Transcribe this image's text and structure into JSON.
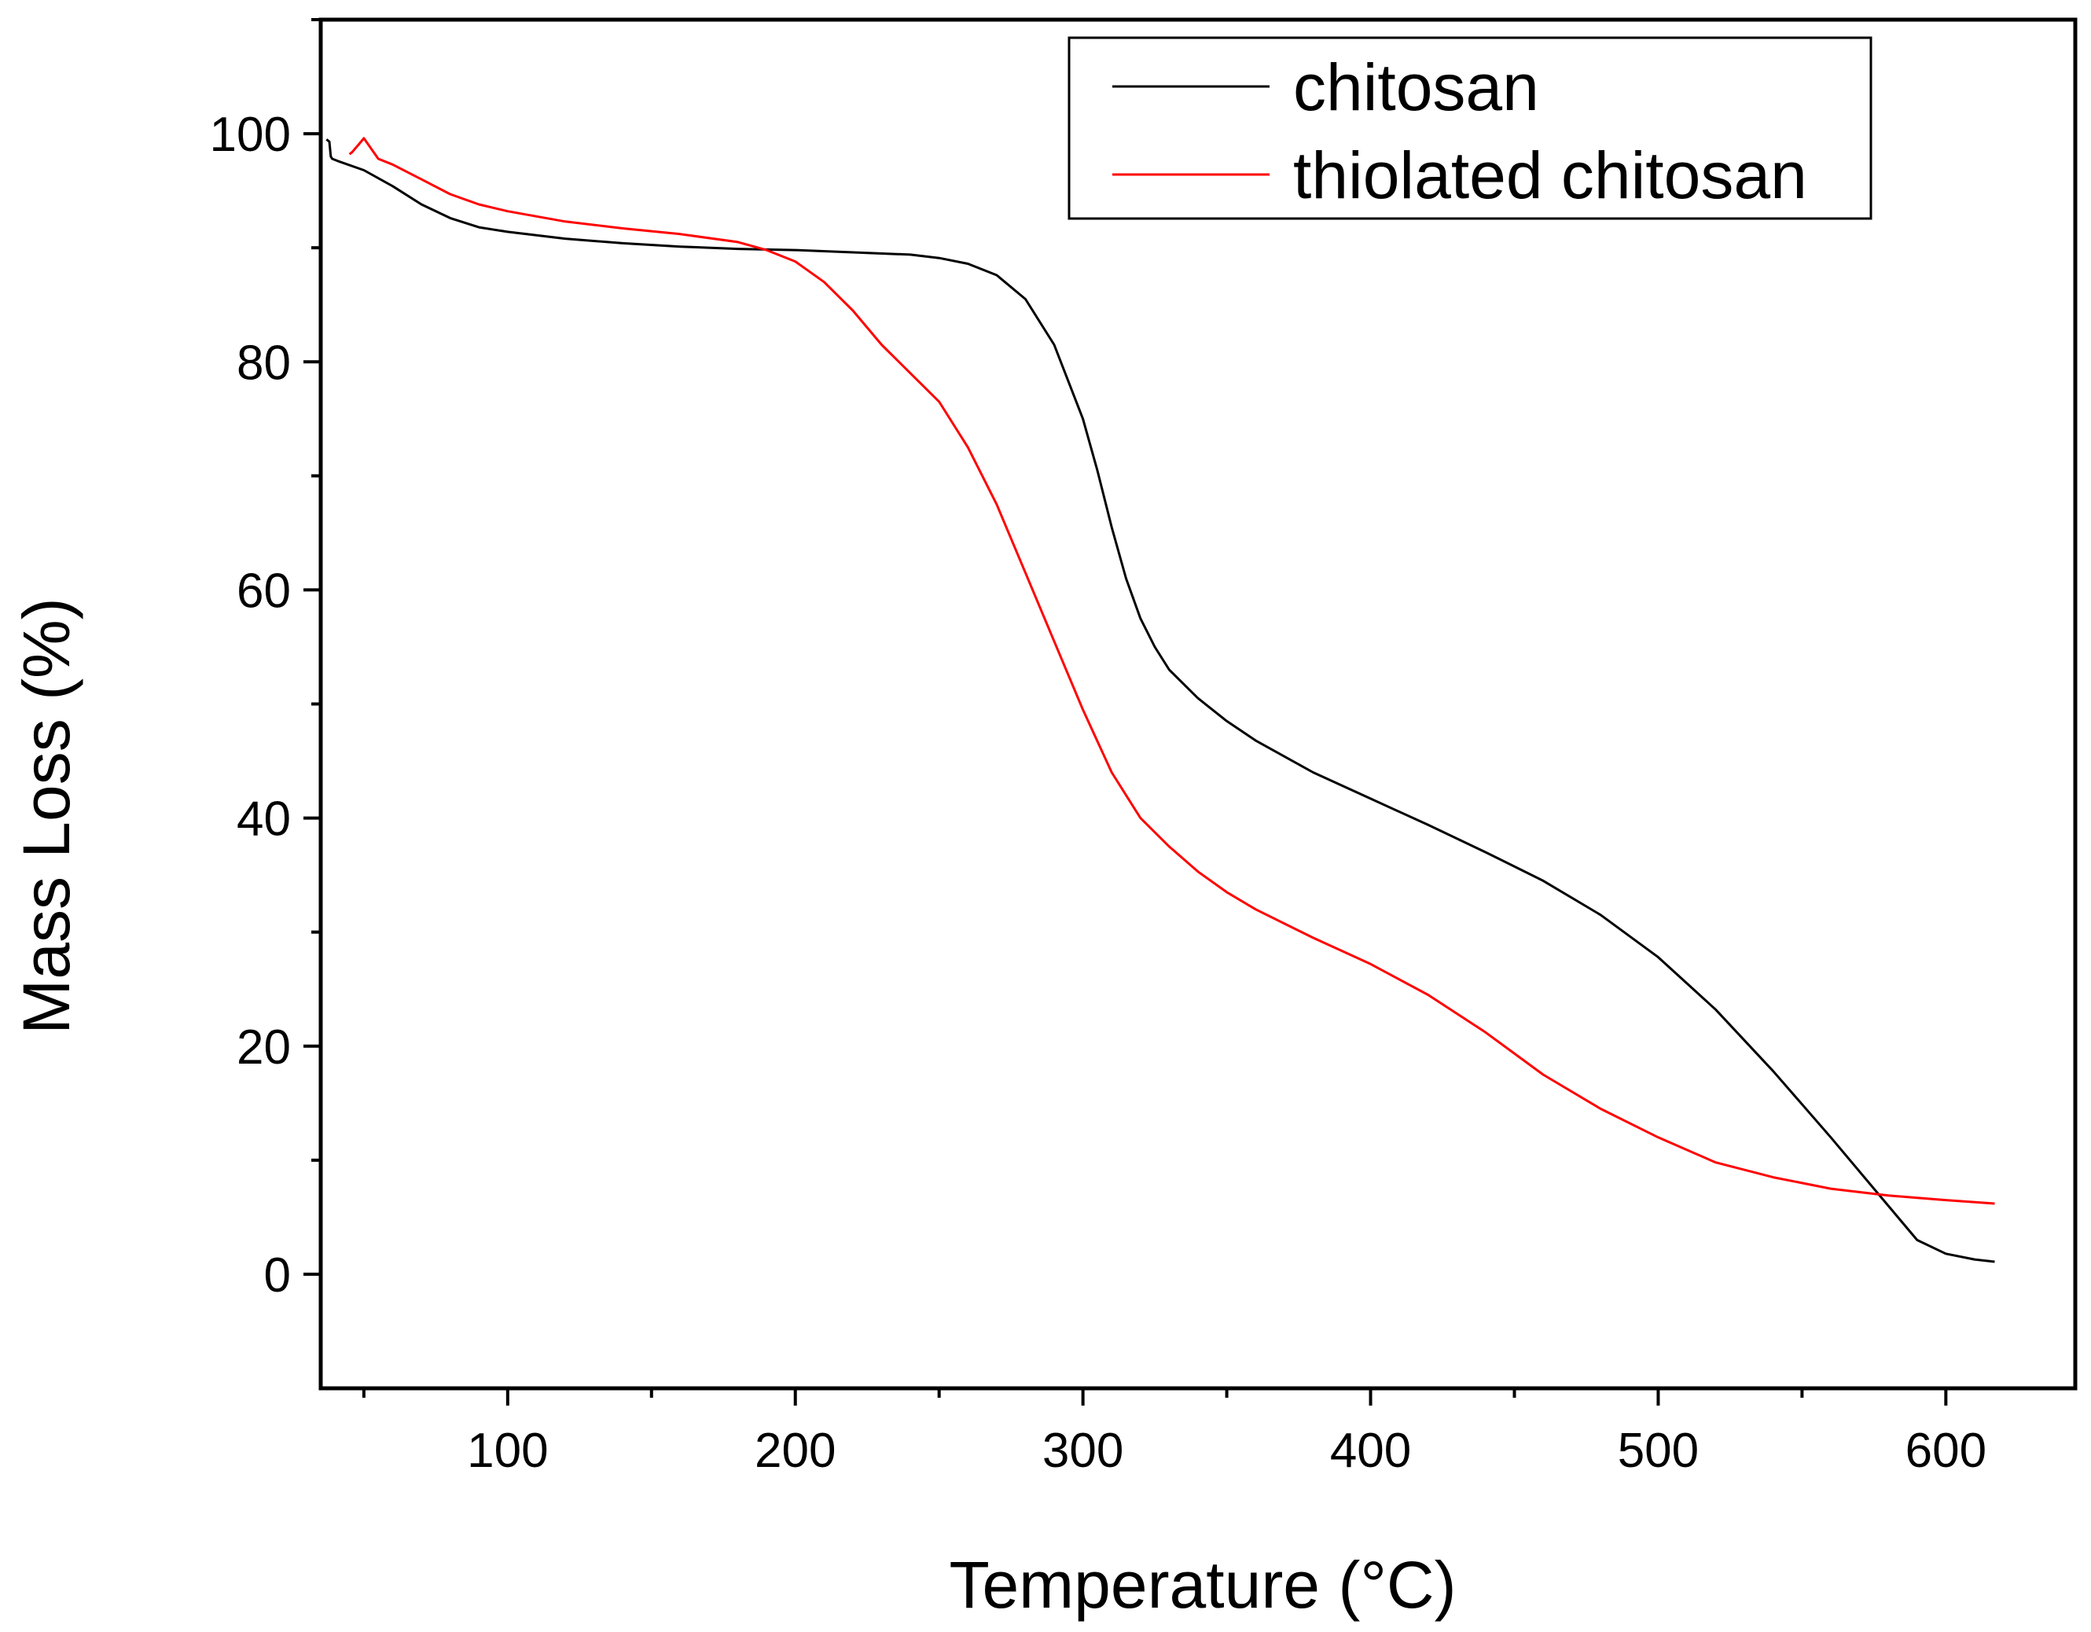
{
  "chart_data": {
    "type": "line",
    "title": "",
    "xlabel": "Temperature (°C)",
    "ylabel": "Mass Loss (%)",
    "xlim": [
      35,
      645
    ],
    "ylim": [
      -10,
      110
    ],
    "xticks": [
      100,
      200,
      300,
      400,
      500,
      600
    ],
    "yticks": [
      0,
      20,
      40,
      60,
      80,
      100
    ],
    "xtick_labels": [
      "100",
      "200",
      "300",
      "400",
      "500",
      "600"
    ],
    "ytick_labels": [
      "0",
      "20",
      "40",
      "60",
      "80",
      "100"
    ],
    "grid": false,
    "legend_position": "top-right",
    "series": [
      {
        "name": "chitosan",
        "color": "#000000",
        "x": [
          37,
          38,
          38.5,
          39,
          41,
          50,
          60,
          70,
          80,
          90,
          100,
          120,
          140,
          160,
          180,
          200,
          220,
          240,
          250,
          260,
          270,
          280,
          290,
          300,
          305,
          310,
          315,
          320,
          325,
          330,
          340,
          350,
          360,
          380,
          400,
          420,
          440,
          460,
          480,
          500,
          520,
          540,
          560,
          580,
          590,
          600,
          610,
          617
        ],
        "values": [
          99.5,
          99.3,
          98.0,
          97.8,
          97.6,
          96.8,
          95.4,
          93.8,
          92.6,
          91.8,
          91.4,
          90.8,
          90.4,
          90.1,
          89.9,
          89.8,
          89.6,
          89.4,
          89.1,
          88.6,
          87.6,
          85.5,
          81.5,
          75.0,
          70.5,
          65.5,
          61.0,
          57.5,
          55.0,
          53.0,
          50.5,
          48.5,
          46.8,
          44.0,
          41.7,
          39.4,
          37.0,
          34.5,
          31.5,
          27.8,
          23.2,
          17.8,
          12.0,
          6.0,
          3.0,
          1.8,
          1.3,
          1.1
        ]
      },
      {
        "name": "thiolated chitosan",
        "color": "#ff0000",
        "x": [
          45,
          46,
          47,
          48,
          50,
          55,
          60,
          70,
          80,
          90,
          100,
          120,
          140,
          160,
          180,
          190,
          200,
          210,
          220,
          230,
          240,
          250,
          260,
          270,
          280,
          290,
          300,
          310,
          320,
          330,
          340,
          350,
          360,
          380,
          400,
          420,
          440,
          460,
          480,
          500,
          520,
          540,
          560,
          580,
          600,
          617
        ],
        "values": [
          98.2,
          98.4,
          98.7,
          99.0,
          99.6,
          97.8,
          97.3,
          96.0,
          94.7,
          93.8,
          93.2,
          92.3,
          91.7,
          91.2,
          90.5,
          89.8,
          88.8,
          87.0,
          84.5,
          81.5,
          79.0,
          76.5,
          72.5,
          67.5,
          61.5,
          55.5,
          49.5,
          44.0,
          40.0,
          37.5,
          35.3,
          33.5,
          32.0,
          29.5,
          27.2,
          24.5,
          21.2,
          17.5,
          14.5,
          12.0,
          9.8,
          8.5,
          7.5,
          6.9,
          6.5,
          6.2
        ]
      }
    ]
  }
}
